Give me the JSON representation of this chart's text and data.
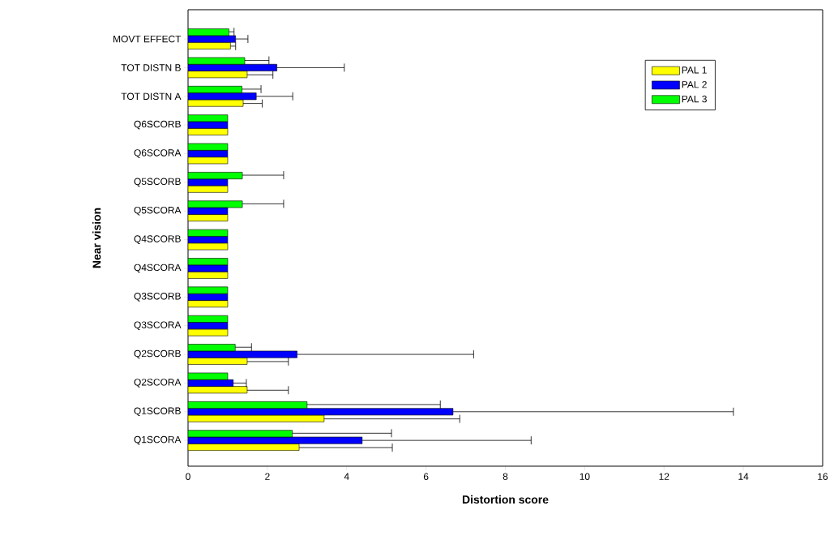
{
  "chart_data": {
    "type": "bar",
    "orientation": "horizontal",
    "xlabel": "Distortion score",
    "ylabel": "Near vision",
    "categories": [
      "MOVT EFFECT",
      "TOT DISTN B",
      "TOT DISTN A",
      "Q6SCORB",
      "Q6SCORA",
      "Q5SCORB",
      "Q5SCORA",
      "Q4SCORB",
      "Q4SCORA",
      "Q3SCORB",
      "Q3SCORA",
      "Q2SCORB",
      "Q2SCORA",
      "Q1SCORB",
      "Q1SCORA"
    ],
    "series": [
      {
        "name": "PAL 1",
        "color": "#ffff00",
        "values": [
          1.07,
          1.49,
          1.39,
          1,
          1,
          1,
          1,
          1,
          1,
          1,
          1,
          1.49,
          1.49,
          3.43,
          2.8
        ],
        "errors": [
          [
            1.07,
            1.2
          ],
          [
            1.49,
            2.14
          ],
          [
            1.39,
            1.87
          ],
          null,
          null,
          null,
          null,
          null,
          null,
          null,
          null,
          [
            1.49,
            2.53
          ],
          [
            1.49,
            2.53
          ],
          [
            3.43,
            6.85
          ],
          [
            2.8,
            5.15
          ]
        ]
      },
      {
        "name": "PAL 2",
        "color": "#0000ff",
        "values": [
          1.2,
          2.24,
          1.72,
          1,
          1,
          1,
          1,
          1,
          1,
          1,
          1,
          2.75,
          1.14,
          6.68,
          4.39
        ],
        "errors": [
          [
            1.2,
            1.51
          ],
          [
            2.24,
            3.94
          ],
          [
            1.72,
            2.64
          ],
          null,
          null,
          null,
          null,
          null,
          null,
          null,
          null,
          [
            2.75,
            7.2
          ],
          [
            1.14,
            1.47
          ],
          [
            6.68,
            13.75
          ],
          [
            4.39,
            8.65
          ]
        ]
      },
      {
        "name": "PAL 3",
        "color": "#00ff00",
        "values": [
          1.03,
          1.43,
          1.36,
          1,
          1,
          1.37,
          1.37,
          1,
          1,
          1,
          1,
          1.19,
          1,
          3.0,
          2.63
        ],
        "errors": [
          [
            1.03,
            1.16
          ],
          [
            1.43,
            2.04
          ],
          [
            1.36,
            1.84
          ],
          null,
          null,
          [
            1.37,
            2.41
          ],
          [
            1.37,
            2.41
          ],
          null,
          null,
          null,
          null,
          [
            1.19,
            1.6
          ],
          null,
          [
            3.0,
            6.36
          ],
          [
            2.63,
            5.13
          ]
        ]
      }
    ],
    "xlim": [
      0,
      16
    ],
    "xticks": [
      0,
      2,
      4,
      6,
      8,
      10,
      12,
      14,
      16
    ],
    "legend": "top right",
    "grid": false
  }
}
